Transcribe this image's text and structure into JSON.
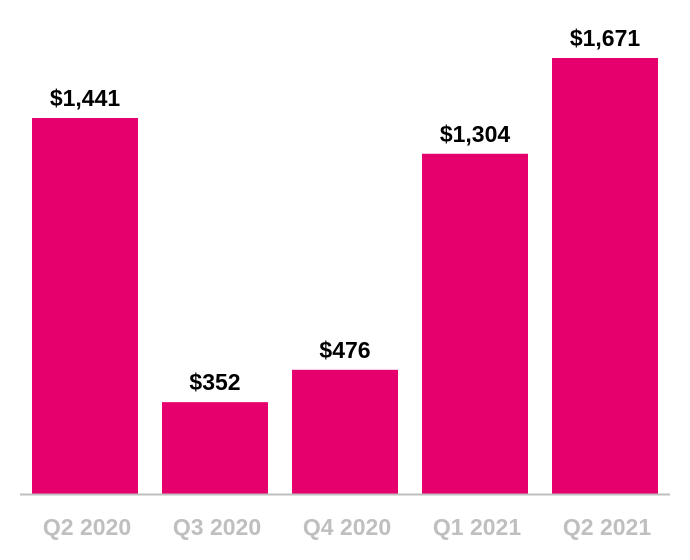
{
  "chart_data": {
    "type": "bar",
    "categories": [
      "Q2 2020",
      "Q3 2020",
      "Q4 2020",
      "Q1 2021",
      "Q2 2021"
    ],
    "values": [
      1441,
      352,
      476,
      1304,
      1671
    ],
    "data_labels": [
      "$1,441",
      "$352",
      "$476",
      "$1,304",
      "$1,671"
    ],
    "title": "",
    "xlabel": "",
    "ylabel": "",
    "ylim": [
      0,
      1671
    ],
    "grid": false,
    "y_axis_visible": false,
    "colors": {
      "bar": "#e5006d",
      "axis": "#bfbfbf",
      "tick_label": "#bfbfbf",
      "data_label": "#000000"
    }
  }
}
